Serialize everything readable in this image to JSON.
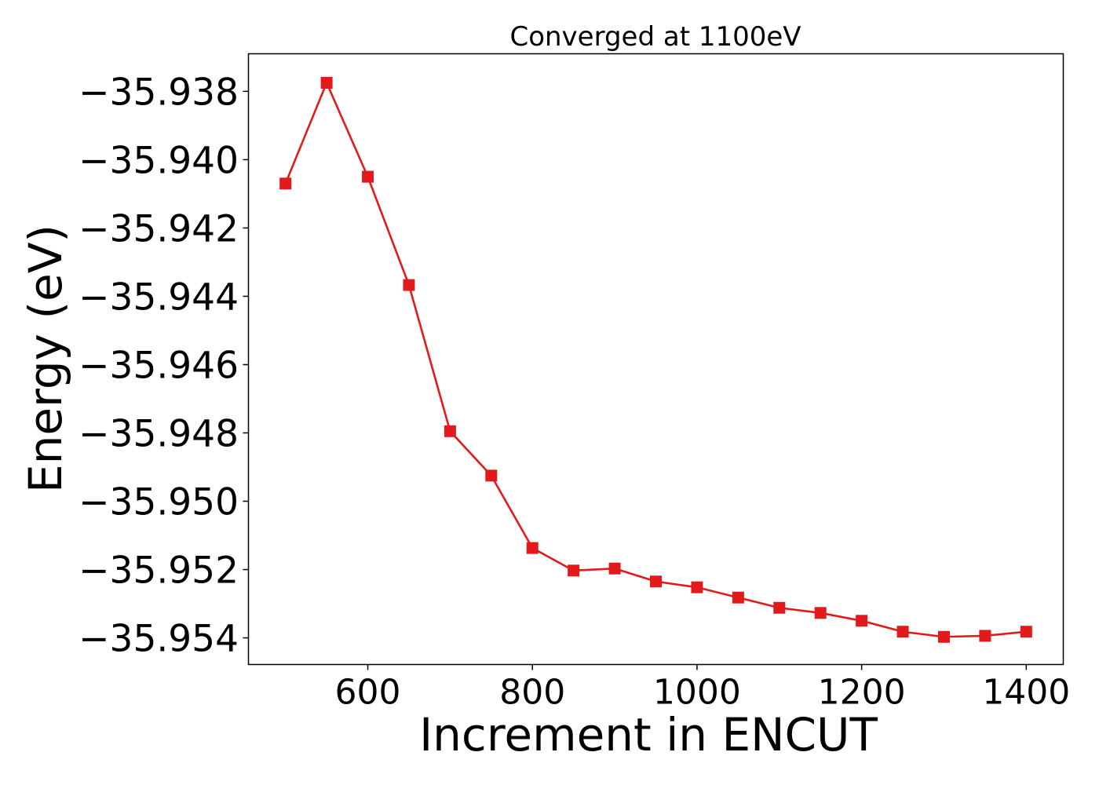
{
  "chart_data": {
    "type": "line",
    "title": "Converged at 1100eV",
    "xlabel": "Increment in ENCUT",
    "ylabel": "Energy (eV)",
    "x": [
      500,
      550,
      600,
      650,
      700,
      750,
      800,
      850,
      900,
      950,
      1000,
      1050,
      1100,
      1150,
      1200,
      1250,
      1300,
      1350,
      1400
    ],
    "series": [
      {
        "values": [
          -35.9407,
          -35.93775,
          -35.9405,
          -35.94367,
          -35.94795,
          -35.94925,
          -35.95137,
          -35.95203,
          -35.95197,
          -35.95235,
          -35.95252,
          -35.95282,
          -35.95312,
          -35.95327,
          -35.9535,
          -35.95382,
          -35.95397,
          -35.95394,
          -35.95382
        ],
        "color": "#e31a1c",
        "marker": "square"
      }
    ],
    "xlim": [
      455,
      1445
    ],
    "ylim": [
      -35.95478,
      -35.9369
    ],
    "xticks": [
      600,
      800,
      1000,
      1200,
      1400
    ],
    "xtick_labels": [
      "600",
      "800",
      "1000",
      "1200",
      "1400"
    ],
    "yticks": [
      -35.938,
      -35.94,
      -35.942,
      -35.944,
      -35.946,
      -35.948,
      -35.95,
      -35.952,
      -35.954
    ],
    "ytick_labels": [
      "−35.938",
      "−35.940",
      "−35.942",
      "−35.944",
      "−35.946",
      "−35.948",
      "−35.950",
      "−35.952",
      "−35.954"
    ],
    "grid": false,
    "legend": "none"
  }
}
